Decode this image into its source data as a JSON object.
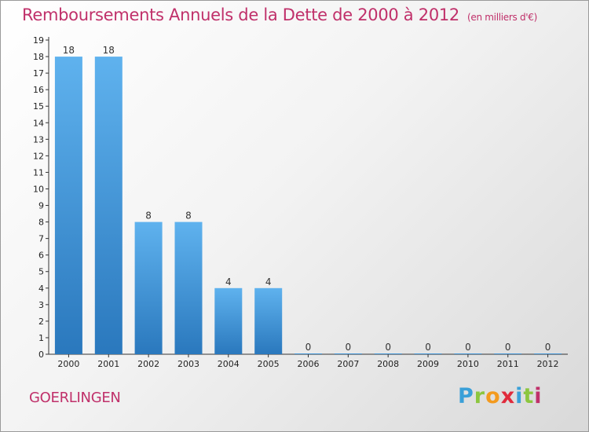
{
  "chart_data": {
    "type": "bar",
    "title": "Remboursements Annuels de la Dette de 2000 à 2012",
    "unit_note": "(en milliers d'€)",
    "categories": [
      "2000",
      "2001",
      "2002",
      "2003",
      "2004",
      "2005",
      "2006",
      "2007",
      "2008",
      "2009",
      "2010",
      "2011",
      "2012"
    ],
    "values": [
      18,
      18,
      8,
      8,
      4,
      4,
      0,
      0,
      0,
      0,
      0,
      0,
      0
    ],
    "ylim": [
      0,
      19
    ],
    "yticks": [
      0,
      1,
      2,
      3,
      4,
      5,
      6,
      7,
      8,
      9,
      10,
      11,
      12,
      13,
      14,
      15,
      16,
      17,
      18,
      19
    ],
    "grid": false,
    "bar_color": "#3a8fd6"
  },
  "footer": {
    "commune": "GOERLINGEN",
    "logo_letters": [
      "P",
      "r",
      "o",
      "x",
      "i",
      "t",
      "i"
    ]
  }
}
